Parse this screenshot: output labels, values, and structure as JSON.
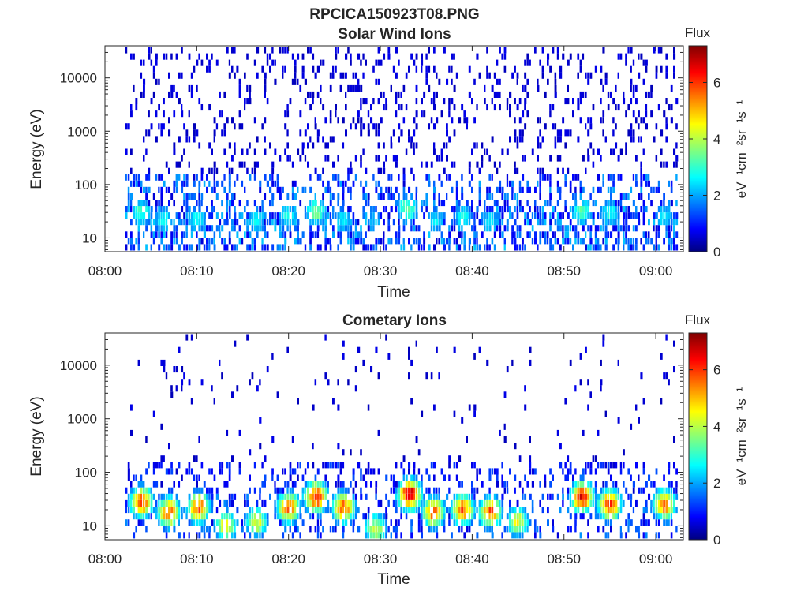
{
  "figure_title": "RPCICA150923T08.PNG",
  "chart_data": [
    {
      "type": "heatmap",
      "title": "Solar Wind Ions",
      "xlabel": "Time",
      "ylabel": "Energy (eV)",
      "x_range": [
        "08:00",
        "09:03"
      ],
      "x_ticks": [
        "08:00",
        "08:10",
        "08:20",
        "08:30",
        "08:40",
        "08:50",
        "09:00"
      ],
      "y_scale": "log",
      "ylim": [
        5.5,
        40000
      ],
      "y_ticks": [
        "10",
        "100",
        "1000",
        "10000"
      ],
      "colorbar": {
        "title": "Flux",
        "label": "eV⁻¹cm⁻²sr⁻¹s⁻¹",
        "range": [
          0,
          7.3
        ],
        "ticks": [
          "0",
          "2",
          "4",
          "6"
        ],
        "colormap": "jet"
      },
      "data_start_min": 2.2,
      "data_end_min": 62.7,
      "hotspots": [
        {
          "t": 4.0,
          "e": 30,
          "v": 3.4
        },
        {
          "t": 6.5,
          "e": 22,
          "v": 3.0
        },
        {
          "t": 10.0,
          "e": 22,
          "v": 3.0
        },
        {
          "t": 16.5,
          "e": 22,
          "v": 2.8
        },
        {
          "t": 20.0,
          "e": 25,
          "v": 3.0
        },
        {
          "t": 23.0,
          "e": 32,
          "v": 3.8
        },
        {
          "t": 26.0,
          "e": 22,
          "v": 2.8
        },
        {
          "t": 29.5,
          "e": 20,
          "v": 2.5
        },
        {
          "t": 33.0,
          "e": 35,
          "v": 3.8
        },
        {
          "t": 36.0,
          "e": 22,
          "v": 2.8
        },
        {
          "t": 39.0,
          "e": 25,
          "v": 3.0
        },
        {
          "t": 42.0,
          "e": 20,
          "v": 2.8
        },
        {
          "t": 52.0,
          "e": 32,
          "v": 3.5
        },
        {
          "t": 55.0,
          "e": 30,
          "v": 3.0
        },
        {
          "t": 61.0,
          "e": 25,
          "v": 2.8
        }
      ]
    },
    {
      "type": "heatmap",
      "title": "Cometary Ions",
      "xlabel": "Time",
      "ylabel": "Energy (eV)",
      "x_range": [
        "08:00",
        "09:03"
      ],
      "x_ticks": [
        "08:00",
        "08:10",
        "08:20",
        "08:30",
        "08:40",
        "08:50",
        "09:00"
      ],
      "y_scale": "log",
      "ylim": [
        5.5,
        40000
      ],
      "y_ticks": [
        "10",
        "100",
        "1000",
        "10000"
      ],
      "colorbar": {
        "title": "Flux",
        "label": "eV⁻¹cm⁻²sr⁻¹s⁻¹",
        "range": [
          0,
          7.3
        ],
        "ticks": [
          "0",
          "2",
          "4",
          "6"
        ],
        "colormap": "jet"
      },
      "data_start_min": 2.2,
      "data_end_min": 62.7,
      "hotspots": [
        {
          "t": 4.0,
          "e": 28,
          "v": 6.3
        },
        {
          "t": 7.0,
          "e": 18,
          "v": 6.0
        },
        {
          "t": 10.2,
          "e": 22,
          "v": 6.0
        },
        {
          "t": 13.2,
          "e": 10,
          "v": 4.8
        },
        {
          "t": 16.5,
          "e": 12,
          "v": 4.6
        },
        {
          "t": 20.0,
          "e": 22,
          "v": 6.0
        },
        {
          "t": 23.0,
          "e": 35,
          "v": 6.6
        },
        {
          "t": 26.0,
          "e": 22,
          "v": 6.0
        },
        {
          "t": 29.5,
          "e": 9,
          "v": 4.6
        },
        {
          "t": 33.2,
          "e": 38,
          "v": 7.0
        },
        {
          "t": 35.8,
          "e": 18,
          "v": 5.8
        },
        {
          "t": 39.0,
          "e": 20,
          "v": 6.0
        },
        {
          "t": 42.0,
          "e": 18,
          "v": 6.0
        },
        {
          "t": 45.0,
          "e": 12,
          "v": 4.6
        },
        {
          "t": 52.0,
          "e": 35,
          "v": 6.6
        },
        {
          "t": 55.0,
          "e": 25,
          "v": 6.3
        },
        {
          "t": 61.0,
          "e": 25,
          "v": 6.0
        }
      ]
    }
  ]
}
